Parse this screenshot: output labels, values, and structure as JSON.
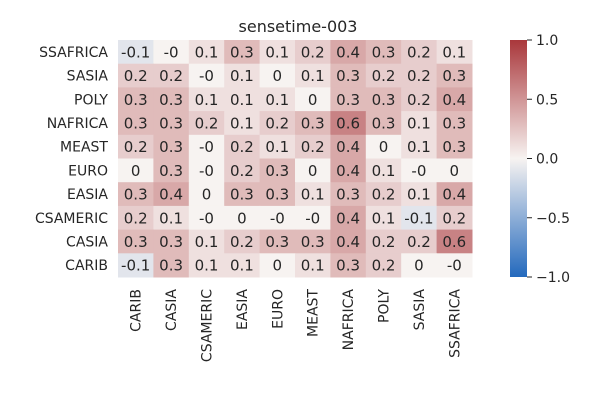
{
  "chart_data": {
    "type": "heatmap",
    "title": "sensetime-003",
    "xlabel": "",
    "ylabel": "",
    "x_categories": [
      "CARIB",
      "CASIA",
      "CSAMERIC",
      "EASIA",
      "EURO",
      "MEAST",
      "NAFRICA",
      "POLY",
      "SASIA",
      "SSAFRICA"
    ],
    "y_categories": [
      "SSAFRICA",
      "SASIA",
      "POLY",
      "NAFRICA",
      "MEAST",
      "EURO",
      "EASIA",
      "CSAMERIC",
      "CASIA",
      "CARIB"
    ],
    "values": [
      [
        -0.1,
        -0.0,
        0.1,
        0.3,
        0.1,
        0.2,
        0.4,
        0.3,
        0.2,
        0.1
      ],
      [
        0.2,
        0.2,
        -0.0,
        0.1,
        0.0,
        0.1,
        0.3,
        0.2,
        0.2,
        0.3
      ],
      [
        0.3,
        0.3,
        0.1,
        0.1,
        0.1,
        0.0,
        0.3,
        0.3,
        0.2,
        0.4
      ],
      [
        0.3,
        0.3,
        0.2,
        0.1,
        0.2,
        0.3,
        0.6,
        0.3,
        0.1,
        0.3
      ],
      [
        0.2,
        0.3,
        -0.0,
        0.2,
        0.1,
        0.2,
        0.4,
        0.0,
        0.1,
        0.3
      ],
      [
        0.0,
        0.3,
        -0.0,
        0.2,
        0.3,
        0.0,
        0.4,
        0.1,
        -0.0,
        0.0
      ],
      [
        0.3,
        0.4,
        0.0,
        0.3,
        0.3,
        0.1,
        0.3,
        0.2,
        0.1,
        0.4
      ],
      [
        0.2,
        0.1,
        -0.0,
        0.0,
        -0.0,
        -0.0,
        0.4,
        0.1,
        -0.1,
        0.2
      ],
      [
        0.3,
        0.3,
        0.1,
        0.2,
        0.3,
        0.3,
        0.4,
        0.2,
        0.2,
        0.6
      ],
      [
        -0.1,
        0.3,
        0.1,
        0.1,
        0.0,
        0.1,
        0.3,
        0.2,
        0.0,
        -0.0
      ]
    ],
    "labels": [
      [
        "-0.1",
        "-0",
        "0.1",
        "0.3",
        "0.1",
        "0.2",
        "0.4",
        "0.3",
        "0.2",
        "0.1"
      ],
      [
        "0.2",
        "0.2",
        "-0",
        "0.1",
        "0",
        "0.1",
        "0.3",
        "0.2",
        "0.2",
        "0.3"
      ],
      [
        "0.3",
        "0.3",
        "0.1",
        "0.1",
        "0.1",
        "0",
        "0.3",
        "0.3",
        "0.2",
        "0.4"
      ],
      [
        "0.3",
        "0.3",
        "0.2",
        "0.1",
        "0.2",
        "0.3",
        "0.6",
        "0.3",
        "0.1",
        "0.3"
      ],
      [
        "0.2",
        "0.3",
        "-0",
        "0.2",
        "0.1",
        "0.2",
        "0.4",
        "0",
        "0.1",
        "0.3"
      ],
      [
        "0",
        "0.3",
        "-0",
        "0.2",
        "0.3",
        "0",
        "0.4",
        "0.1",
        "-0",
        "0"
      ],
      [
        "0.3",
        "0.4",
        "0",
        "0.3",
        "0.3",
        "0.1",
        "0.3",
        "0.2",
        "0.1",
        "0.4"
      ],
      [
        "0.2",
        "0.1",
        "-0",
        "0",
        "-0",
        "-0",
        "0.4",
        "0.1",
        "-0.1",
        "0.2"
      ],
      [
        "0.3",
        "0.3",
        "0.1",
        "0.2",
        "0.3",
        "0.3",
        "0.4",
        "0.2",
        "0.2",
        "0.6"
      ],
      [
        "-0.1",
        "0.3",
        "0.1",
        "0.1",
        "0",
        "0.1",
        "0.3",
        "0.2",
        "0",
        "-0"
      ]
    ],
    "colormap": {
      "name": "vlag",
      "vmin": -1.0,
      "vmax": 1.0,
      "low": "#2369bd",
      "mid": "#f7f3f1",
      "high": "#a9373b"
    },
    "colorbar_ticks": [
      1.0,
      0.5,
      0.0,
      -0.5,
      -1.0
    ],
    "colorbar_tick_labels": [
      "1.0",
      "0.5",
      "0.0",
      "−0.5",
      "−1.0"
    ],
    "grid": false,
    "legend": "colorbar-right"
  }
}
